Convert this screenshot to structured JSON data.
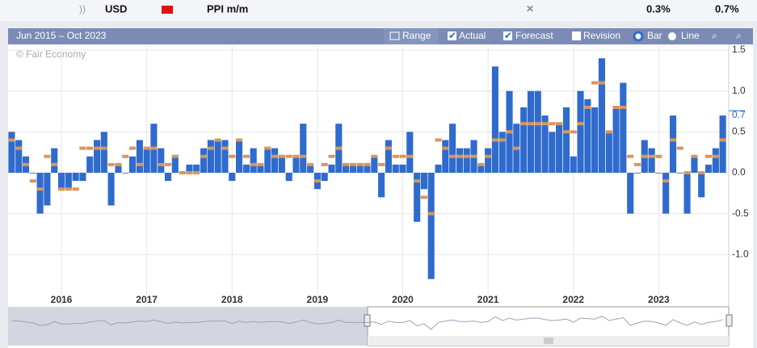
{
  "header": {
    "currency": "USD",
    "event": "PPI m/m",
    "values": [
      "0.3%",
      "0.7%"
    ]
  },
  "toolbar": {
    "range_text": "Jun 2015 – Oct 2023",
    "range": "Range",
    "revision": "Revision",
    "bar": "Bar",
    "line": "Line"
  },
  "chart_data": {
    "type": "bar",
    "watermark": "© Fair Economy",
    "x": [
      2015.417,
      2015.5,
      2015.583,
      2015.667,
      2015.75,
      2015.833,
      2015.917,
      2016.0,
      2016.083,
      2016.167,
      2016.25,
      2016.333,
      2016.417,
      2016.5,
      2016.583,
      2016.667,
      2016.75,
      2016.833,
      2016.917,
      2017.0,
      2017.083,
      2017.167,
      2017.25,
      2017.333,
      2017.417,
      2017.5,
      2017.583,
      2017.667,
      2017.75,
      2017.833,
      2017.917,
      2018.0,
      2018.083,
      2018.167,
      2018.25,
      2018.333,
      2018.417,
      2018.5,
      2018.583,
      2018.667,
      2018.75,
      2018.833,
      2018.917,
      2019.0,
      2019.083,
      2019.167,
      2019.25,
      2019.333,
      2019.417,
      2019.5,
      2019.583,
      2019.667,
      2019.75,
      2019.833,
      2019.917,
      2020.0,
      2020.083,
      2020.167,
      2020.25,
      2020.333,
      2020.417,
      2020.5,
      2020.583,
      2020.667,
      2020.75,
      2020.833,
      2020.917,
      2021.0,
      2021.083,
      2021.167,
      2021.25,
      2021.333,
      2021.417,
      2021.5,
      2021.583,
      2021.667,
      2021.75,
      2021.833,
      2021.917,
      2022.0,
      2022.083,
      2022.167,
      2022.25,
      2022.333,
      2022.417,
      2022.5,
      2022.583,
      2022.667,
      2022.75,
      2022.833,
      2022.917,
      2023.0,
      2023.083,
      2023.167,
      2023.25,
      2023.333,
      2023.417,
      2023.5,
      2023.583,
      2023.667,
      2023.75
    ],
    "series": [
      {
        "name": "Actual",
        "color": "#2f6bcd",
        "values": [
          0.5,
          0.4,
          0.2,
          0.0,
          -0.5,
          -0.4,
          0.3,
          -0.2,
          -0.2,
          -0.1,
          -0.1,
          0.2,
          0.4,
          0.5,
          -0.4,
          0.1,
          0.0,
          0.2,
          0.4,
          0.3,
          0.6,
          0.3,
          -0.1,
          0.2,
          0.0,
          0.1,
          0.1,
          0.3,
          0.4,
          0.4,
          0.4,
          -0.1,
          0.4,
          0.1,
          0.3,
          0.1,
          0.3,
          0.3,
          0.2,
          -0.1,
          0.2,
          0.6,
          0.1,
          -0.2,
          -0.1,
          0.1,
          0.6,
          0.1,
          0.1,
          0.1,
          0.1,
          0.2,
          -0.3,
          0.4,
          0.1,
          0.1,
          0.5,
          -0.6,
          -0.2,
          -1.3,
          0.1,
          0.4,
          0.6,
          0.3,
          0.3,
          0.4,
          0.1,
          0.3,
          1.3,
          0.5,
          1.0,
          0.6,
          0.8,
          1.0,
          1.0,
          0.7,
          0.5,
          0.6,
          0.8,
          0.2,
          1.0,
          0.9,
          0.8,
          1.4,
          0.5,
          0.8,
          1.1,
          -0.5,
          0.0,
          0.4,
          0.3,
          0.0,
          -0.5,
          0.7,
          0.0,
          -0.5,
          0.2,
          -0.3,
          0.1,
          0.3,
          0.7
        ]
      },
      {
        "name": "Forecast",
        "color": "#d9965b",
        "values": [
          0.4,
          0.3,
          0.1,
          -0.1,
          -0.2,
          0.2,
          0.1,
          -0.2,
          -0.2,
          -0.2,
          0.3,
          0.3,
          0.3,
          0.3,
          0.1,
          0.1,
          0.2,
          0.3,
          0.1,
          0.3,
          0.3,
          0.1,
          0.1,
          0.2,
          0.0,
          0.0,
          0.0,
          0.2,
          0.3,
          0.4,
          0.3,
          0.2,
          0.4,
          0.2,
          0.1,
          0.1,
          0.3,
          0.2,
          0.2,
          0.2,
          0.2,
          0.2,
          0.1,
          -0.1,
          0.1,
          0.2,
          0.3,
          0.1,
          0.1,
          0.1,
          0.1,
          0.2,
          0.1,
          0.3,
          0.2,
          0.2,
          0.2,
          -0.1,
          -0.3,
          -0.5,
          0.4,
          0.3,
          0.2,
          0.2,
          0.2,
          0.2,
          0.1,
          0.2,
          0.4,
          0.4,
          0.5,
          0.3,
          0.6,
          0.6,
          0.6,
          0.6,
          0.6,
          0.6,
          0.5,
          0.5,
          0.6,
          0.8,
          1.1,
          1.1,
          0.5,
          0.8,
          0.8,
          0.2,
          0.1,
          0.2,
          0.2,
          0.2,
          -0.1,
          0.4,
          0.3,
          0.0,
          0.2,
          0.0,
          0.2,
          0.2,
          0.4
        ]
      }
    ],
    "xlim": [
      2015.375,
      2023.82
    ],
    "xticks": [
      2016,
      2017,
      2018,
      2019,
      2020,
      2021,
      2022,
      2023
    ],
    "ylim": [
      -1.62,
      1.55
    ],
    "yticks": [
      {
        "value": 1.5,
        "label": "1.5"
      },
      {
        "value": 1.0,
        "label": "1.0"
      },
      {
        "value": 0.5,
        "label": "0.5"
      },
      {
        "value": 0.0,
        "label": "0.0"
      },
      {
        "value": -0.5,
        "label": "-0.5"
      },
      {
        "value": -1.0,
        "label": "-1.0"
      }
    ],
    "grid": true
  }
}
